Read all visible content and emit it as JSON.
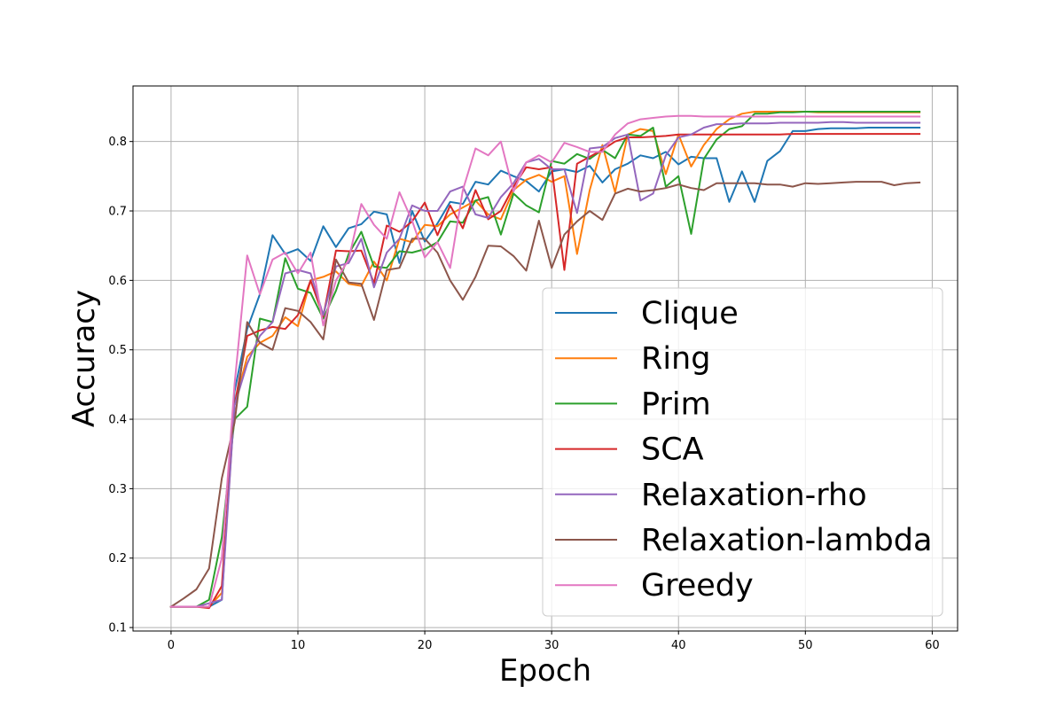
{
  "chart_data": {
    "type": "line",
    "xlabel": "Epoch",
    "ylabel": "Accuracy",
    "xlim": [
      -3,
      62
    ],
    "ylim": [
      0.095,
      0.88
    ],
    "xticks": [
      0,
      10,
      20,
      30,
      40,
      50,
      60
    ],
    "yticks": [
      0.1,
      0.2,
      0.3,
      0.4,
      0.5,
      0.6,
      0.7,
      0.8
    ],
    "grid": true,
    "legend_position": "lower-right",
    "x": [
      0,
      1,
      2,
      3,
      4,
      5,
      6,
      7,
      8,
      9,
      10,
      11,
      12,
      13,
      14,
      15,
      16,
      17,
      18,
      19,
      20,
      21,
      22,
      23,
      24,
      25,
      26,
      27,
      28,
      29,
      30,
      31,
      32,
      33,
      34,
      35,
      36,
      37,
      38,
      39,
      40,
      41,
      42,
      43,
      44,
      45,
      46,
      47,
      48,
      49,
      50,
      51,
      52,
      53,
      54,
      55,
      56,
      57,
      58,
      59
    ],
    "series": [
      {
        "name": "Clique",
        "color": "#1f77b4",
        "values": [
          0.13,
          0.13,
          0.13,
          0.13,
          0.14,
          0.44,
          0.53,
          0.58,
          0.665,
          0.638,
          0.645,
          0.628,
          0.678,
          0.648,
          0.675,
          0.681,
          0.699,
          0.695,
          0.625,
          0.7,
          0.656,
          0.682,
          0.713,
          0.71,
          0.742,
          0.738,
          0.758,
          0.75,
          0.743,
          0.728,
          0.757,
          0.76,
          0.756,
          0.765,
          0.741,
          0.76,
          0.768,
          0.78,
          0.776,
          0.785,
          0.767,
          0.778,
          0.776,
          0.776,
          0.713,
          0.757,
          0.713,
          0.772,
          0.786,
          0.815,
          0.815,
          0.818,
          0.819,
          0.819,
          0.819,
          0.82,
          0.82,
          0.82,
          0.82,
          0.82
        ]
      },
      {
        "name": "Ring",
        "color": "#ff7f0e",
        "values": [
          0.13,
          0.13,
          0.13,
          0.13,
          0.15,
          0.42,
          0.49,
          0.51,
          0.52,
          0.547,
          0.534,
          0.6,
          0.605,
          0.613,
          0.595,
          0.592,
          0.627,
          0.6,
          0.66,
          0.655,
          0.68,
          0.678,
          0.695,
          0.705,
          0.715,
          0.695,
          0.688,
          0.73,
          0.745,
          0.752,
          0.742,
          0.75,
          0.638,
          0.73,
          0.795,
          0.727,
          0.81,
          0.818,
          0.815,
          0.753,
          0.81,
          0.764,
          0.795,
          0.818,
          0.832,
          0.84,
          0.843,
          0.843,
          0.843,
          0.843,
          0.843,
          0.842,
          0.842,
          0.842,
          0.842,
          0.842,
          0.842,
          0.842,
          0.842,
          0.842
        ]
      },
      {
        "name": "Prim",
        "color": "#2ca02c",
        "values": [
          0.13,
          0.13,
          0.13,
          0.14,
          0.23,
          0.4,
          0.418,
          0.545,
          0.54,
          0.632,
          0.588,
          0.582,
          0.545,
          0.585,
          0.638,
          0.67,
          0.62,
          0.618,
          0.642,
          0.64,
          0.645,
          0.655,
          0.685,
          0.683,
          0.715,
          0.72,
          0.666,
          0.725,
          0.708,
          0.698,
          0.772,
          0.768,
          0.782,
          0.775,
          0.788,
          0.776,
          0.81,
          0.808,
          0.82,
          0.735,
          0.75,
          0.667,
          0.775,
          0.803,
          0.818,
          0.822,
          0.84,
          0.84,
          0.842,
          0.842,
          0.843,
          0.843,
          0.843,
          0.843,
          0.843,
          0.843,
          0.843,
          0.843,
          0.843,
          0.843
        ]
      },
      {
        "name": "SCA",
        "color": "#d62728",
        "values": [
          0.13,
          0.13,
          0.13,
          0.128,
          0.16,
          0.42,
          0.52,
          0.528,
          0.533,
          0.53,
          0.55,
          0.6,
          0.548,
          0.643,
          0.642,
          0.643,
          0.596,
          0.679,
          0.67,
          0.685,
          0.712,
          0.665,
          0.708,
          0.675,
          0.73,
          0.688,
          0.7,
          0.735,
          0.763,
          0.76,
          0.763,
          0.615,
          0.768,
          0.778,
          0.788,
          0.8,
          0.806,
          0.806,
          0.807,
          0.808,
          0.81,
          0.81,
          0.81,
          0.81,
          0.81,
          0.81,
          0.81,
          0.81,
          0.81,
          0.811,
          0.811,
          0.811,
          0.811,
          0.811,
          0.811,
          0.811,
          0.811,
          0.811,
          0.811,
          0.811
        ]
      },
      {
        "name": "Relaxation-rho",
        "color": "#9467bd",
        "values": [
          0.13,
          0.13,
          0.13,
          0.135,
          0.14,
          0.42,
          0.48,
          0.52,
          0.54,
          0.61,
          0.615,
          0.61,
          0.55,
          0.62,
          0.625,
          0.66,
          0.59,
          0.64,
          0.66,
          0.708,
          0.7,
          0.7,
          0.728,
          0.735,
          0.695,
          0.69,
          0.72,
          0.74,
          0.77,
          0.775,
          0.76,
          0.76,
          0.697,
          0.79,
          0.792,
          0.805,
          0.81,
          0.715,
          0.725,
          0.78,
          0.806,
          0.81,
          0.82,
          0.825,
          0.825,
          0.826,
          0.826,
          0.826,
          0.827,
          0.827,
          0.827,
          0.827,
          0.828,
          0.828,
          0.827,
          0.827,
          0.827,
          0.827,
          0.827,
          0.827
        ]
      },
      {
        "name": "Relaxation-lambda",
        "color": "#8c564b",
        "values": [
          0.13,
          0.142,
          0.155,
          0.185,
          0.315,
          0.395,
          0.54,
          0.51,
          0.5,
          0.56,
          0.556,
          0.54,
          0.515,
          0.63,
          0.597,
          0.595,
          0.543,
          0.615,
          0.618,
          0.66,
          0.66,
          0.64,
          0.6,
          0.572,
          0.605,
          0.65,
          0.649,
          0.635,
          0.614,
          0.686,
          0.618,
          0.666,
          0.685,
          0.7,
          0.687,
          0.725,
          0.732,
          0.728,
          0.73,
          0.733,
          0.738,
          0.733,
          0.73,
          0.74,
          0.74,
          0.74,
          0.74,
          0.738,
          0.738,
          0.735,
          0.74,
          0.739,
          0.74,
          0.741,
          0.742,
          0.742,
          0.742,
          0.737,
          0.74,
          0.741
        ]
      },
      {
        "name": "Greedy",
        "color": "#e377c2",
        "values": [
          0.13,
          0.13,
          0.13,
          0.13,
          0.2,
          0.45,
          0.636,
          0.58,
          0.63,
          0.64,
          0.61,
          0.64,
          0.535,
          0.6,
          0.63,
          0.71,
          0.68,
          0.66,
          0.727,
          0.686,
          0.633,
          0.655,
          0.618,
          0.73,
          0.79,
          0.78,
          0.8,
          0.728,
          0.77,
          0.78,
          0.77,
          0.798,
          0.792,
          0.785,
          0.785,
          0.81,
          0.826,
          0.832,
          0.834,
          0.836,
          0.837,
          0.837,
          0.836,
          0.836,
          0.836,
          0.836,
          0.836,
          0.836,
          0.836,
          0.836,
          0.836,
          0.836,
          0.836,
          0.836,
          0.836,
          0.836,
          0.836,
          0.836,
          0.836,
          0.836
        ]
      }
    ]
  }
}
